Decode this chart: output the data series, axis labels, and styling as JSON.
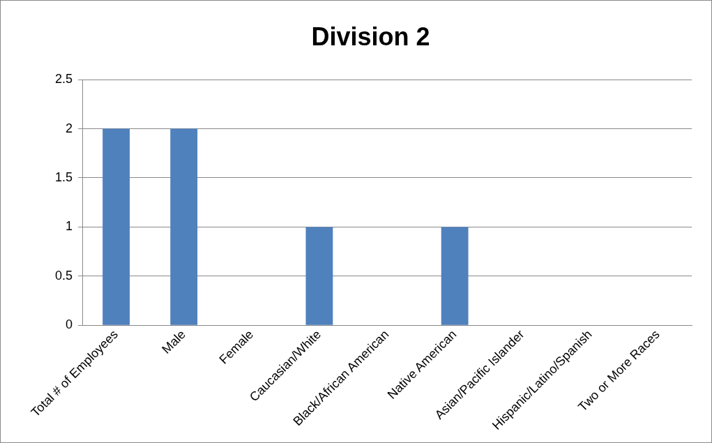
{
  "chart_data": {
    "type": "bar",
    "title": "Division 2",
    "categories": [
      "Total # of Employees",
      "Male",
      "Female",
      "Caucasian/White",
      "Black/African American",
      "Native American",
      "Asian/Pacific Islander",
      "Hispanic/Latino/Spanish",
      "Two or More Races"
    ],
    "values": [
      2,
      2,
      0,
      1,
      0,
      1,
      0,
      0,
      0
    ],
    "color": "#4f81bd",
    "ylim": [
      0,
      2.5
    ],
    "yticks": [
      0,
      0.5,
      1,
      1.5,
      2,
      2.5
    ],
    "grid": "y",
    "legend": false
  }
}
